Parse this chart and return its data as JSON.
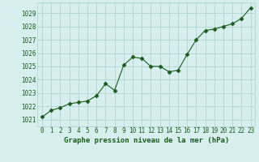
{
  "x": [
    0,
    1,
    2,
    3,
    4,
    5,
    6,
    7,
    8,
    9,
    10,
    11,
    12,
    13,
    14,
    15,
    16,
    17,
    18,
    19,
    20,
    21,
    22,
    23
  ],
  "y": [
    1021.2,
    1021.7,
    1021.9,
    1022.2,
    1022.3,
    1022.4,
    1022.8,
    1023.7,
    1023.2,
    1025.1,
    1025.7,
    1025.6,
    1025.0,
    1025.0,
    1024.6,
    1024.7,
    1025.9,
    1027.0,
    1027.7,
    1027.8,
    1028.0,
    1028.2,
    1028.6,
    1029.4
  ],
  "line_color": "#1a5c1a",
  "marker_color": "#1a5c1a",
  "bg_color": "#d6eeee",
  "grid_color": "#aacccc",
  "xlabel": "Graphe pression niveau de la mer (hPa)",
  "xlabel_color": "#1a5c1a",
  "tick_color": "#1a5c1a",
  "ylim": [
    1020.5,
    1029.8
  ],
  "xlim": [
    -0.5,
    23.5
  ],
  "yticks": [
    1021,
    1022,
    1023,
    1024,
    1025,
    1026,
    1027,
    1028,
    1029
  ],
  "xticks": [
    0,
    1,
    2,
    3,
    4,
    5,
    6,
    7,
    8,
    9,
    10,
    11,
    12,
    13,
    14,
    15,
    16,
    17,
    18,
    19,
    20,
    21,
    22,
    23
  ],
  "tick_fontsize": 5.5,
  "xlabel_fontsize": 6.5
}
